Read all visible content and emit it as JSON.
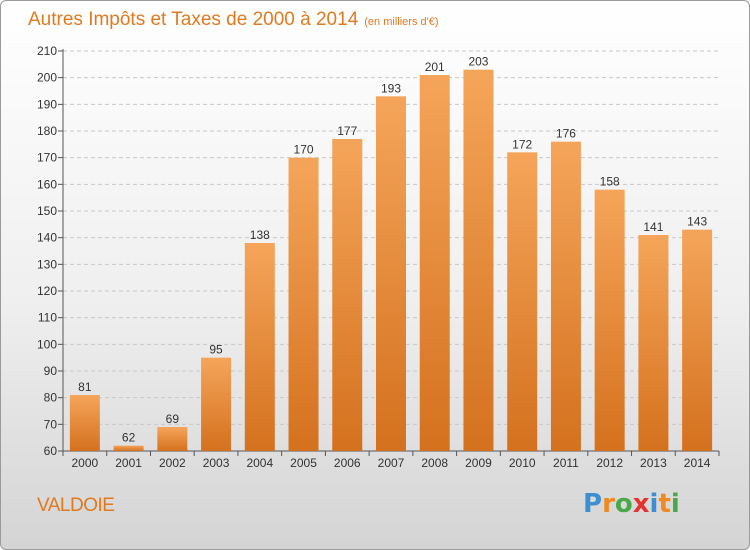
{
  "header": {
    "title": "Autres Impôts et Taxes de 2000 à 2014",
    "unit": "(en milliers d'€)"
  },
  "footer": {
    "city": "VALDOIE",
    "brand_letters": [
      {
        "ch": "P",
        "color": "#3d8fd1"
      },
      {
        "ch": "r",
        "color": "#f08a1c"
      },
      {
        "ch": "o",
        "color": "#4aa84a"
      },
      {
        "ch": "x",
        "color": "#e3342f"
      },
      {
        "ch": "i",
        "color": "#3d8fd1"
      },
      {
        "ch": "t",
        "color": "#f08a1c"
      },
      {
        "ch": "i",
        "color": "#4aa84a"
      }
    ]
  },
  "colors": {
    "accent": "#e07a1f",
    "bar_top": "#f5a55a",
    "bar_bottom": "#d4711e",
    "grid": "#c8c8c8"
  },
  "chart_data": {
    "type": "bar",
    "title": "Autres Impôts et Taxes de 2000 à 2014",
    "subtitle": "(en milliers d'€)",
    "categories": [
      "2000",
      "2001",
      "2002",
      "2003",
      "2004",
      "2005",
      "2006",
      "2007",
      "2008",
      "2009",
      "2010",
      "2011",
      "2012",
      "2013",
      "2014"
    ],
    "values": [
      81,
      62,
      69,
      95,
      138,
      170,
      177,
      193,
      201,
      203,
      172,
      176,
      158,
      141,
      143
    ],
    "ylim": [
      60,
      210
    ],
    "yticks": [
      60,
      70,
      80,
      90,
      100,
      110,
      120,
      130,
      140,
      150,
      160,
      170,
      180,
      190,
      200,
      210
    ],
    "grid": true,
    "xlabel": "",
    "ylabel": ""
  }
}
